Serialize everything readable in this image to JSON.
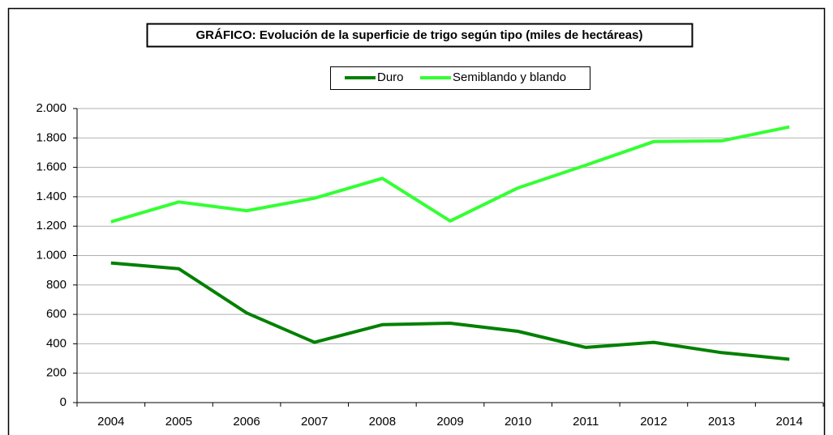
{
  "chart_data": {
    "type": "line",
    "title": "GRÁFICO: Evolución de la superficie de trigo según tipo (miles de hectáreas)",
    "categories": [
      "2004",
      "2005",
      "2006",
      "2007",
      "2008",
      "2009",
      "2010",
      "2011",
      "2012",
      "2013",
      "2014"
    ],
    "series": [
      {
        "name": "Duro",
        "color": "#008000",
        "values": [
          950,
          910,
          610,
          410,
          530,
          540,
          485,
          375,
          410,
          340,
          295
        ]
      },
      {
        "name": "Semiblando y blando",
        "color": "#33ff33",
        "values": [
          1230,
          1365,
          1305,
          1390,
          1525,
          1235,
          1460,
          1615,
          1775,
          1780,
          1875
        ]
      }
    ],
    "ylim": [
      0,
      2000
    ],
    "yticks": [
      0,
      200,
      400,
      600,
      800,
      {
        "value": 1000,
        "label": "1.000"
      },
      {
        "value": 1200,
        "label": "1.200"
      },
      {
        "value": 1400,
        "label": "1.400"
      },
      {
        "value": 1600,
        "label": "1.600"
      },
      {
        "value": 1800,
        "label": "1.800"
      },
      {
        "value": 2000,
        "label": "2.000"
      }
    ],
    "grid": true,
    "legend": "top"
  }
}
